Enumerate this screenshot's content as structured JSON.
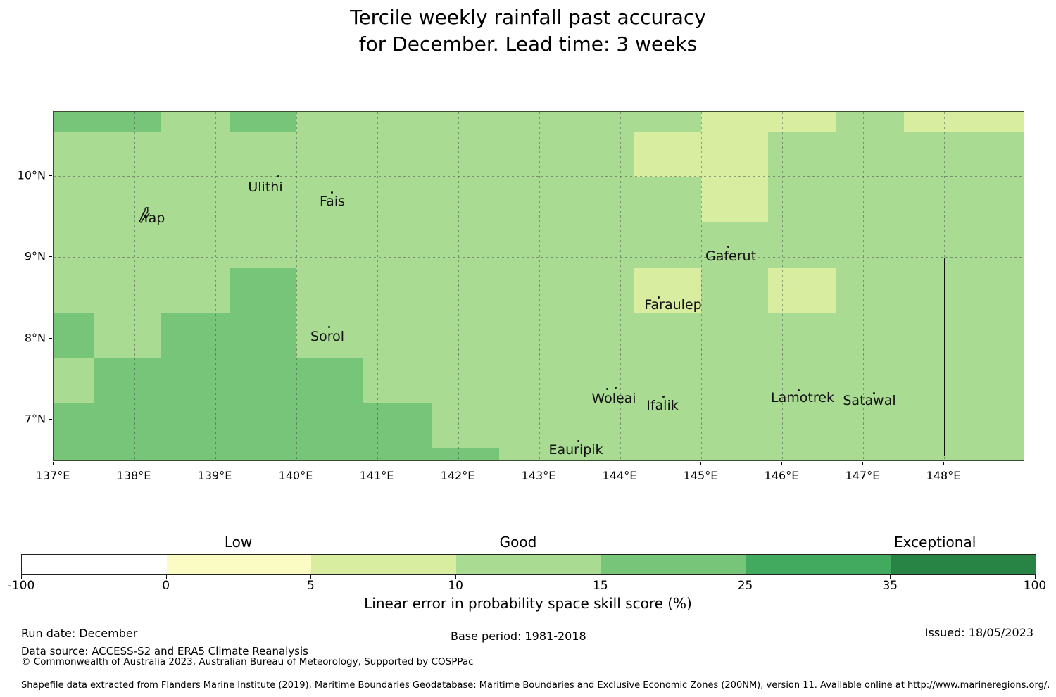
{
  "title": {
    "line1": "Tercile weekly rainfall past accuracy",
    "line2": "for December. Lead time: 3 weeks"
  },
  "chart_data": {
    "type": "heatmap",
    "title": "Tercile weekly rainfall past accuracy for December. Lead time: 3 weeks",
    "projection": {
      "lon_min": 137.0,
      "lon_max": 149.0,
      "lat_min": 6.49,
      "lat_max": 10.79
    },
    "x_ticks": [
      {
        "lon": 137,
        "label": "137°E"
      },
      {
        "lon": 138,
        "label": "138°E"
      },
      {
        "lon": 139,
        "label": "139°E"
      },
      {
        "lon": 140,
        "label": "140°E"
      },
      {
        "lon": 141,
        "label": "141°E"
      },
      {
        "lon": 142,
        "label": "142°E"
      },
      {
        "lon": 143,
        "label": "143°E"
      },
      {
        "lon": 144,
        "label": "144°E"
      },
      {
        "lon": 145,
        "label": "145°E"
      },
      {
        "lon": 146,
        "label": "146°E"
      },
      {
        "lon": 147,
        "label": "147°E"
      },
      {
        "lon": 148,
        "label": "148°E"
      }
    ],
    "y_ticks": [
      {
        "lat": 10,
        "label": "10°N"
      },
      {
        "lat": 9,
        "label": "9°N"
      },
      {
        "lat": 8,
        "label": "8°N"
      },
      {
        "lat": 7,
        "label": "7°N"
      }
    ],
    "background_bin": "10-15",
    "cells": [
      {
        "lon": [
          137.0,
          138.33
        ],
        "lat": [
          10.54,
          10.79
        ],
        "bin": "15-25"
      },
      {
        "lon": [
          139.17,
          140.0
        ],
        "lat": [
          10.54,
          10.79
        ],
        "bin": "15-25"
      },
      {
        "lon": [
          139.17,
          140.0
        ],
        "lat": [
          8.31,
          8.87
        ],
        "bin": "15-25"
      },
      {
        "lon": [
          137.0,
          137.5
        ],
        "lat": [
          7.76,
          8.31
        ],
        "bin": "15-25"
      },
      {
        "lon": [
          138.33,
          140.0
        ],
        "lat": [
          7.76,
          8.31
        ],
        "bin": "15-25"
      },
      {
        "lon": [
          137.5,
          140.83
        ],
        "lat": [
          7.2,
          7.76
        ],
        "bin": "15-25"
      },
      {
        "lon": [
          137.0,
          141.67
        ],
        "lat": [
          6.64,
          7.2
        ],
        "bin": "15-25"
      },
      {
        "lon": [
          137.0,
          142.5
        ],
        "lat": [
          6.49,
          6.64
        ],
        "bin": "15-25"
      },
      {
        "lon": [
          145.0,
          146.67
        ],
        "lat": [
          10.54,
          10.79
        ],
        "bin": "5-10"
      },
      {
        "lon": [
          147.5,
          149.0
        ],
        "lat": [
          10.54,
          10.79
        ],
        "bin": "5-10"
      },
      {
        "lon": [
          144.17,
          145.83
        ],
        "lat": [
          9.99,
          10.54
        ],
        "bin": "5-10"
      },
      {
        "lon": [
          145.0,
          145.83
        ],
        "lat": [
          9.43,
          9.99
        ],
        "bin": "5-10"
      },
      {
        "lon": [
          144.17,
          145.0
        ],
        "lat": [
          8.31,
          8.87
        ],
        "bin": "5-10"
      },
      {
        "lon": [
          145.83,
          146.67
        ],
        "lat": [
          8.31,
          8.87
        ],
        "bin": "5-10"
      }
    ],
    "islands": [
      {
        "name": "Yap",
        "label": [
          217,
          309
        ],
        "marker_type": "island-outline",
        "markers": [
          [
            204,
            305
          ]
        ]
      },
      {
        "name": "Ulithi",
        "label": [
          376,
          265
        ],
        "marker_type": "dot",
        "markers": [
          [
            394,
            249
          ]
        ]
      },
      {
        "name": "Fais",
        "label": [
          471,
          285
        ],
        "marker_type": "dot",
        "markers": [
          [
            470,
            272
          ]
        ]
      },
      {
        "name": "Gaferut",
        "label": [
          1037,
          363
        ],
        "marker_type": "dot",
        "markers": [
          [
            1033,
            349
          ]
        ]
      },
      {
        "name": "Faraulep",
        "label": [
          955,
          432
        ],
        "marker_type": "dot",
        "markers": [
          [
            934,
            421
          ]
        ]
      },
      {
        "name": "Sorol",
        "label": [
          464,
          477
        ],
        "marker_type": "dot",
        "markers": [
          [
            466,
            463
          ]
        ]
      },
      {
        "name": "Woleai",
        "label": [
          871,
          565
        ],
        "marker_type": "dot",
        "markers": [
          [
            861,
            551
          ],
          [
            873,
            549
          ]
        ]
      },
      {
        "name": "Ifalik",
        "label": [
          940,
          575
        ],
        "marker_type": "dot",
        "markers": [
          [
            941,
            562
          ]
        ]
      },
      {
        "name": "Lamotrek",
        "label": [
          1139,
          564
        ],
        "marker_type": "dot",
        "markers": [
          [
            1133,
            553
          ]
        ]
      },
      {
        "name": "Satawal",
        "label": [
          1234,
          568
        ],
        "marker_type": "dot",
        "markers": [
          [
            1240,
            557
          ]
        ]
      },
      {
        "name": "Eauripik",
        "label": [
          817,
          638
        ],
        "marker_type": "dot",
        "markers": [
          [
            820,
            625
          ]
        ]
      }
    ],
    "boundary_line": {
      "lon": 148.01,
      "lat_from": 8.99,
      "lat_to": 6.55
    },
    "colorbar": {
      "boundaries": [
        "-100",
        "0",
        "5",
        "10",
        "15",
        "25",
        "35",
        "100"
      ],
      "segments": [
        {
          "bin": "-100-0",
          "color": "#ffffff"
        },
        {
          "bin": "0-5",
          "color": "#fafcc4"
        },
        {
          "bin": "5-10",
          "color": "#d9eda1"
        },
        {
          "bin": "10-15",
          "color": "#aadb93"
        },
        {
          "bin": "15-25",
          "color": "#76c578"
        },
        {
          "bin": "25-35",
          "color": "#41aa5e"
        },
        {
          "bin": "35-100",
          "color": "#278445"
        }
      ],
      "categories": [
        {
          "label": "Low",
          "segment": 1
        },
        {
          "label": "Good",
          "segment": 3
        },
        {
          "label": "Exceptional",
          "segment": 6
        }
      ],
      "axis_label": "Linear error in probability space skill score (%)"
    }
  },
  "footer": {
    "run_date": "Run date: December",
    "data_source": "Data source: ACCESS-S2 and ERA5 Climate Reanalysis",
    "copyright": "© Commonwealth of Australia 2023, Australian Bureau of Meteorology, Supported by COSPPac",
    "base_period": "Base period: 1981-2018",
    "issued": "Issued: 18/05/2023",
    "shapefile_note": "Shapefile data extracted from Flanders Marine Institute (2019), Maritime Boundaries Geodatabase: Maritime Boundaries and Exclusive Economic Zones (200NM), version 11. Available online at http://www.marineregions.org/."
  }
}
